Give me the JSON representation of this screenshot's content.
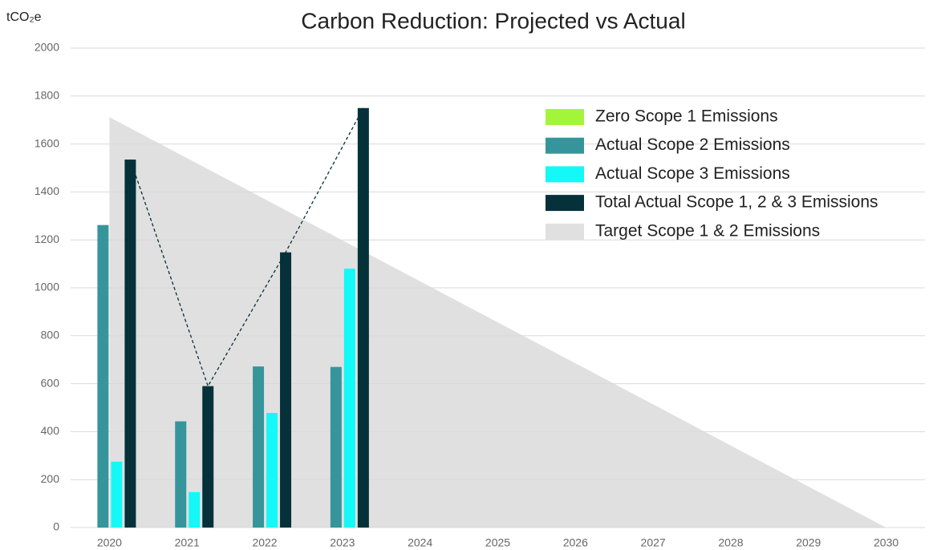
{
  "chart_data": {
    "type": "bar",
    "title": "Carbon Reduction: Projected vs Actual",
    "y_label": "tCO₂e",
    "categories": [
      "2020",
      "2021",
      "2022",
      "2023",
      "2024",
      "2025",
      "2026",
      "2027",
      "2028",
      "2029",
      "2030"
    ],
    "series": [
      {
        "name": "Zero Scope 1 Emissions",
        "color": "#a3f53a",
        "values": [
          0,
          0,
          0,
          0,
          null,
          null,
          null,
          null,
          null,
          null,
          null
        ]
      },
      {
        "name": "Actual Scope 2 Emissions",
        "color": "#36959a",
        "values": [
          1262,
          443,
          672,
          670,
          null,
          null,
          null,
          null,
          null,
          null,
          null
        ]
      },
      {
        "name": "Actual Scope 3 Emissions",
        "color": "#14f8f8",
        "values": [
          275,
          148,
          478,
          1080,
          null,
          null,
          null,
          null,
          null,
          null,
          null
        ]
      },
      {
        "name": "Total Actual Scope 1, 2 & 3 Emissions",
        "color": "#04313a",
        "values": [
          1535,
          590,
          1148,
          1750,
          null,
          null,
          null,
          null,
          null,
          null,
          null
        ]
      },
      {
        "name": "Target Scope 1 & 2 Emissions",
        "color": "#e0e0e0",
        "kind": "area",
        "values": [
          1712,
          1541,
          1370,
          1198,
          1027,
          856,
          685,
          514,
          342,
          171,
          0
        ]
      }
    ],
    "ylim": [
      0,
      2000
    ],
    "yticks": [
      0,
      200,
      400,
      600,
      800,
      1000,
      1200,
      1400,
      1600,
      1800,
      2000
    ],
    "grid": true
  }
}
